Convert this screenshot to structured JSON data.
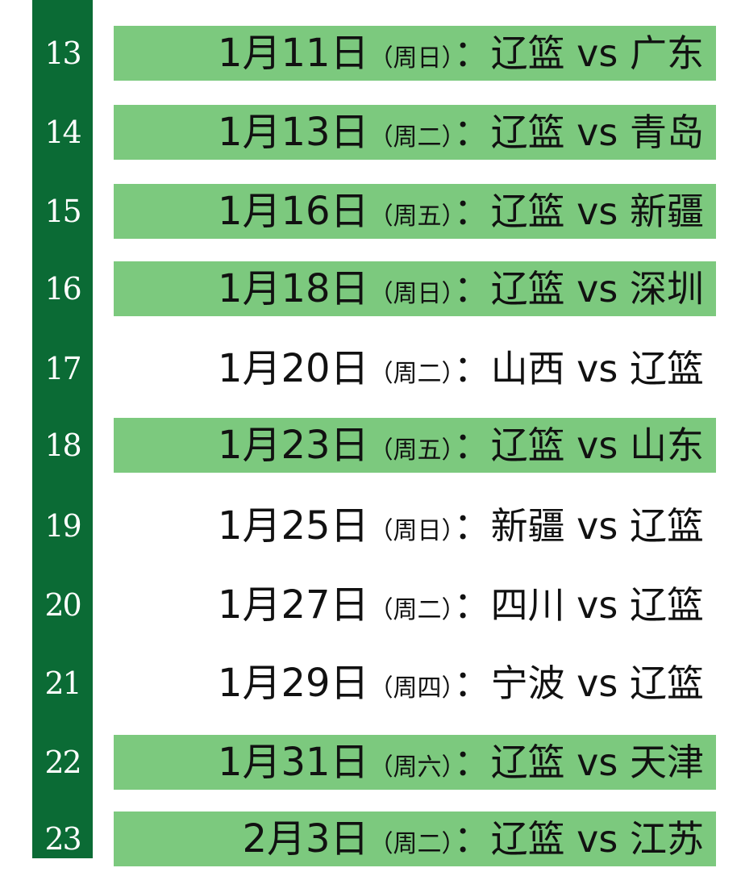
{
  "colors": {
    "sidebar": "#0b6b35",
    "highlight": "#7cc97e"
  },
  "games": [
    {
      "num": "13",
      "date": "1月11日",
      "weekday": "（周日）",
      "colon": "：",
      "match": "辽篮 vs 广东",
      "highlighted": true
    },
    {
      "num": "14",
      "date": "1月13日",
      "weekday": "（周二）",
      "colon": "：",
      "match": "辽篮 vs 青岛",
      "highlighted": true
    },
    {
      "num": "15",
      "date": "1月16日",
      "weekday": "（周五）",
      "colon": "：",
      "match": "辽篮 vs 新疆",
      "highlighted": true
    },
    {
      "num": "16",
      "date": "1月18日",
      "weekday": "（周日）",
      "colon": "：",
      "match": "辽篮 vs 深圳",
      "highlighted": true
    },
    {
      "num": "17",
      "date": "1月20日",
      "weekday": "（周二）",
      "colon": "：",
      "match": "山西 vs 辽篮",
      "highlighted": false
    },
    {
      "num": "18",
      "date": "1月23日",
      "weekday": "（周五）",
      "colon": "：",
      "match": "辽篮 vs 山东",
      "highlighted": true
    },
    {
      "num": "19",
      "date": "1月25日",
      "weekday": "（周日）",
      "colon": "：",
      "match": "新疆 vs 辽篮",
      "highlighted": false
    },
    {
      "num": "20",
      "date": "1月27日",
      "weekday": "（周二）",
      "colon": "：",
      "match": "四川 vs 辽篮",
      "highlighted": false
    },
    {
      "num": "21",
      "date": "1月29日",
      "weekday": "（周四）",
      "colon": "：",
      "match": "宁波 vs 辽篮",
      "highlighted": false
    },
    {
      "num": "22",
      "date": "1月31日",
      "weekday": "（周六）",
      "colon": "：",
      "match": "辽篮 vs 天津",
      "highlighted": true
    },
    {
      "num": "23",
      "date": "2月3日",
      "weekday": "（周二）",
      "colon": "：",
      "match": "辽篮 vs 江苏",
      "highlighted": true
    }
  ]
}
